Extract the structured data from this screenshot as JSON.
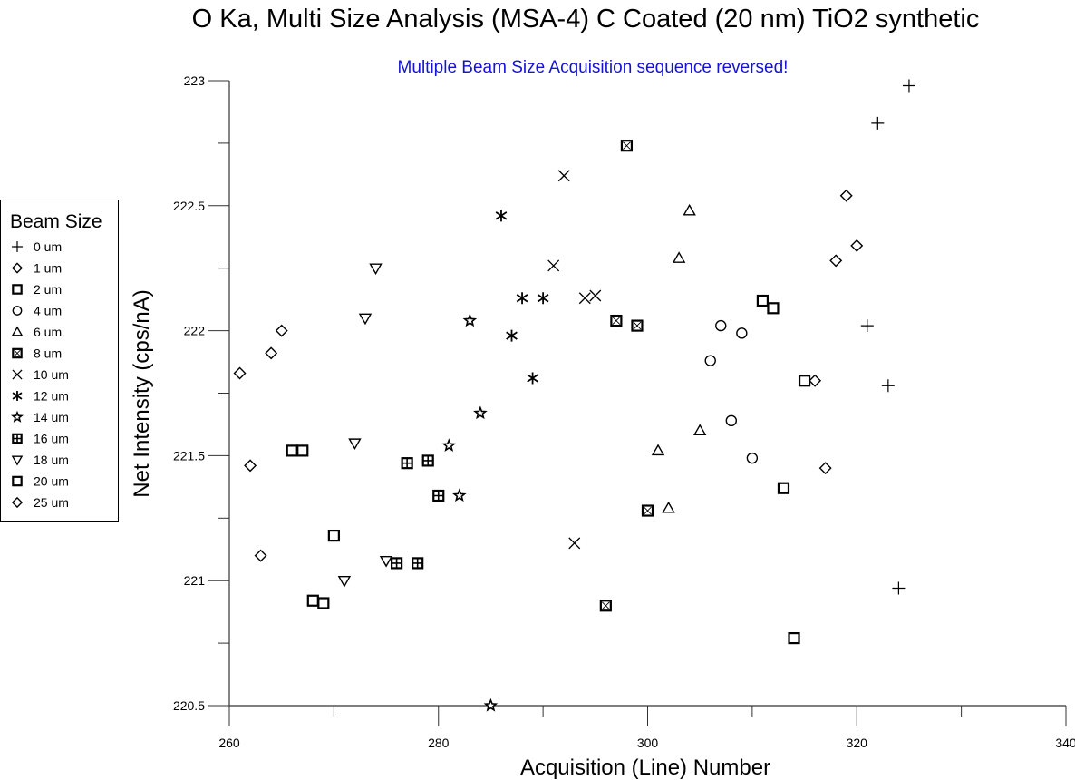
{
  "chart_data": {
    "type": "scatter",
    "title": "O Ka, Multi Size Analysis (MSA-4) C Coated (20 nm) TiO2 synthetic",
    "subtitle": "Multiple Beam Size Acquisition sequence reversed!",
    "subtitle_color": "#1414d2",
    "xlabel": "Acquisition (Line) Number",
    "ylabel": "Net Intensity (cps/nA)",
    "xlim": [
      260,
      340
    ],
    "ylim": [
      220.5,
      223
    ],
    "xticks": [
      260,
      280,
      300,
      320,
      340
    ],
    "xtick_labels": [
      "260",
      "280",
      "300",
      "320",
      "340"
    ],
    "xminor_ticks": [
      270,
      290,
      310,
      330
    ],
    "yticks": [
      220.5,
      221,
      221.5,
      222,
      222.5,
      223
    ],
    "ytick_labels": [
      "220.5",
      "221",
      "221.5",
      "222",
      "222.5",
      "223"
    ],
    "yminor_ticks": [
      220.75,
      221.25,
      221.75,
      222.25,
      222.75
    ],
    "grid": false,
    "legend": {
      "title": "Beam Size",
      "placement": "left-outside"
    },
    "series": [
      {
        "name": "0 um",
        "marker": "plus",
        "x": [
          321,
          322,
          323,
          324,
          325
        ],
        "y": [
          222.02,
          222.83,
          221.78,
          220.97,
          222.98
        ]
      },
      {
        "name": "1 um",
        "marker": "diamond",
        "x": [
          316,
          317,
          318,
          319,
          320
        ],
        "y": [
          221.8,
          221.45,
          222.28,
          222.54,
          222.34
        ]
      },
      {
        "name": "2 um",
        "marker": "square",
        "x": [
          311,
          312,
          313,
          314,
          315
        ],
        "y": [
          222.12,
          222.09,
          221.37,
          220.77,
          221.8
        ]
      },
      {
        "name": "4 um",
        "marker": "circle",
        "x": [
          306,
          307,
          308,
          309,
          310
        ],
        "y": [
          221.88,
          222.02,
          221.64,
          221.99,
          221.49
        ]
      },
      {
        "name": "6 um",
        "marker": "triangle-up",
        "x": [
          301,
          302,
          303,
          304,
          305
        ],
        "y": [
          221.52,
          221.29,
          222.29,
          222.48,
          221.6
        ]
      },
      {
        "name": "8 um",
        "marker": "square-x",
        "x": [
          296,
          297,
          298,
          299,
          300
        ],
        "y": [
          220.9,
          222.04,
          222.74,
          222.02,
          221.28
        ]
      },
      {
        "name": "10 um",
        "marker": "x",
        "x": [
          291,
          292,
          293,
          294,
          295
        ],
        "y": [
          222.26,
          222.62,
          221.15,
          222.13,
          222.14
        ]
      },
      {
        "name": "12 um",
        "marker": "asterisk",
        "x": [
          286,
          287,
          288,
          289,
          290
        ],
        "y": [
          222.46,
          221.98,
          222.13,
          221.81,
          222.13
        ]
      },
      {
        "name": "14 um",
        "marker": "star",
        "x": [
          281,
          282,
          283,
          284,
          285
        ],
        "y": [
          221.54,
          221.34,
          222.04,
          221.67,
          220.5
        ]
      },
      {
        "name": "16 um",
        "marker": "square-plus",
        "x": [
          276,
          277,
          278,
          279,
          280
        ],
        "y": [
          221.07,
          221.47,
          221.07,
          221.48,
          221.34
        ]
      },
      {
        "name": "18 um",
        "marker": "triangle-down",
        "x": [
          271,
          272,
          273,
          274,
          275
        ],
        "y": [
          221.0,
          221.55,
          222.05,
          222.25,
          221.08
        ]
      },
      {
        "name": "20 um",
        "marker": "square",
        "x": [
          266,
          267,
          268,
          269,
          270
        ],
        "y": [
          221.52,
          221.52,
          220.92,
          220.91,
          221.18
        ]
      },
      {
        "name": "25 um",
        "marker": "diamond",
        "x": [
          261,
          262,
          263,
          264,
          265
        ],
        "y": [
          221.83,
          221.46,
          221.1,
          221.91,
          222.0
        ]
      }
    ]
  }
}
